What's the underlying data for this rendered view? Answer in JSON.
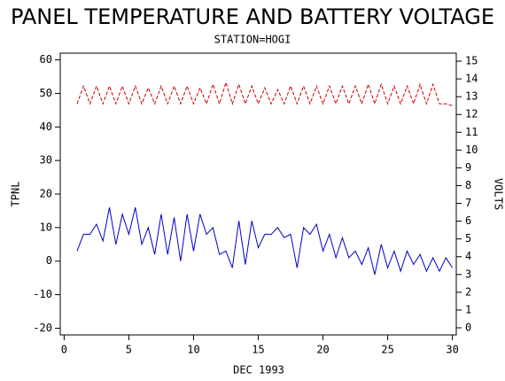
{
  "chart_data": {
    "type": "line",
    "title": "PANEL TEMPERATURE AND BATTERY VOLTAGE",
    "subtitle": "STATION=HOGI",
    "xlabel": "DEC 1993",
    "ylabel": "TPNL",
    "y2label": "VOLTS",
    "x": [
      1,
      1.5,
      2,
      2.5,
      3,
      3.5,
      4,
      4.5,
      5,
      5.5,
      6,
      6.5,
      7,
      7.5,
      8,
      8.5,
      9,
      9.5,
      10,
      10.5,
      11,
      11.5,
      12,
      12.5,
      13,
      13.5,
      14,
      14.5,
      15,
      15.5,
      16,
      16.5,
      17,
      17.5,
      18,
      18.5,
      19,
      19.5,
      20,
      20.5,
      21,
      21.5,
      22,
      22.5,
      23,
      23.5,
      24,
      24.5,
      25,
      25.5,
      26,
      26.5,
      27,
      27.5,
      28,
      28.5,
      29,
      29.5,
      30
    ],
    "series": [
      {
        "color": "#0000cc",
        "dashed": false,
        "values": [
          3,
          8,
          8,
          11,
          6,
          16,
          5,
          14,
          8,
          16,
          5,
          10,
          2,
          14,
          2,
          13,
          0,
          14,
          3,
          14,
          8,
          10,
          2,
          3,
          -2,
          12,
          -1,
          12,
          4,
          8,
          8,
          10,
          7,
          8,
          -2,
          10,
          8,
          11,
          3,
          8,
          1,
          7,
          1,
          3,
          -1,
          4,
          -4,
          5,
          -2,
          3,
          -3,
          3,
          -1,
          2,
          -3,
          1,
          -3,
          1,
          -2
        ]
      },
      {
        "color": "#cc0000",
        "dashed": true,
        "axis": "y2",
        "values": [
          12.6,
          13.6,
          12.6,
          13.6,
          12.6,
          13.6,
          12.6,
          13.6,
          12.6,
          13.6,
          12.6,
          13.5,
          12.6,
          13.6,
          12.6,
          13.6,
          12.6,
          13.6,
          12.6,
          13.5,
          12.6,
          13.7,
          12.6,
          13.8,
          12.6,
          13.7,
          12.6,
          13.6,
          12.6,
          13.5,
          12.6,
          13.4,
          12.6,
          13.6,
          12.6,
          13.6,
          12.6,
          13.6,
          12.6,
          13.6,
          12.6,
          13.6,
          12.6,
          13.6,
          12.6,
          13.7,
          12.6,
          13.7,
          12.6,
          13.6,
          12.6,
          13.6,
          12.6,
          13.7,
          12.6,
          13.7,
          12.6,
          12.6,
          12.5
        ]
      }
    ],
    "xlim": [
      -0.3,
      30.3
    ],
    "ylim": [
      -22,
      62
    ],
    "y2lim": [
      -0.4,
      15.45
    ],
    "xticks": [
      0,
      5,
      10,
      15,
      20,
      25,
      30
    ],
    "yticks": [
      -20,
      -10,
      0,
      10,
      20,
      30,
      40,
      50,
      60
    ],
    "y2ticks": [
      0,
      1,
      2,
      3,
      4,
      5,
      6,
      7,
      8,
      9,
      10,
      11,
      12,
      13,
      14,
      15
    ]
  }
}
